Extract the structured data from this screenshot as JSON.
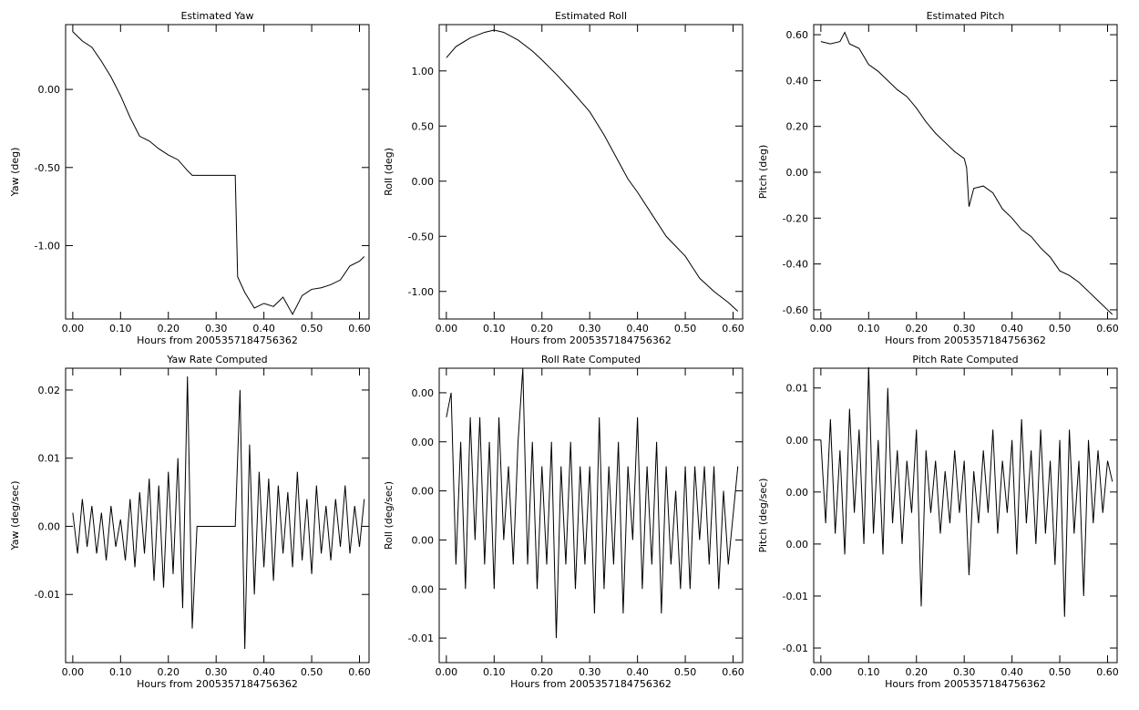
{
  "chart_data": [
    {
      "type": "line",
      "title": "Estimated Yaw",
      "xlabel": "Hours from 2005357184756362",
      "ylabel": "Yaw (deg)",
      "x": [
        0,
        0.02,
        0.04,
        0.06,
        0.08,
        0.1,
        0.12,
        0.14,
        0.16,
        0.18,
        0.2,
        0.22,
        0.24,
        0.25,
        0.34,
        0.345,
        0.36,
        0.38,
        0.4,
        0.42,
        0.44,
        0.46,
        0.48,
        0.5,
        0.52,
        0.54,
        0.56,
        0.58,
        0.6,
        0.61
      ],
      "values": [
        0.37,
        0.31,
        0.27,
        0.18,
        0.08,
        -0.04,
        -0.18,
        -0.3,
        -0.33,
        -0.38,
        -0.42,
        -0.45,
        -0.52,
        -0.55,
        -0.55,
        -1.2,
        -1.3,
        -1.4,
        -1.37,
        -1.39,
        -1.33,
        -1.44,
        -1.32,
        -1.28,
        -1.27,
        -1.25,
        -1.22,
        -1.13,
        -1.1,
        -1.07
      ],
      "color": "#000000",
      "xlim": [
        -0.015,
        0.62
      ],
      "ylim": [
        -1.47,
        0.415
      ],
      "xticks": [
        {
          "value": 0,
          "label": "0.00"
        },
        {
          "value": 0.1,
          "label": "0.10"
        },
        {
          "value": 0.2,
          "label": "0.20"
        },
        {
          "value": 0.3,
          "label": "0.30"
        },
        {
          "value": 0.4,
          "label": "0.40"
        },
        {
          "value": 0.5,
          "label": "0.50"
        },
        {
          "value": 0.6,
          "label": "0.60"
        }
      ],
      "yticks": [
        {
          "value": 0,
          "label": "0.00"
        },
        {
          "value": -0.5,
          "label": "-0.50"
        },
        {
          "value": -1,
          "label": "-1.00"
        }
      ]
    },
    {
      "type": "line",
      "title": "Estimated Roll",
      "xlabel": "Hours from 2005357184756362",
      "ylabel": "Roll (deg)",
      "x": [
        0,
        0.02,
        0.05,
        0.08,
        0.1,
        0.12,
        0.15,
        0.18,
        0.2,
        0.23,
        0.26,
        0.3,
        0.33,
        0.36,
        0.38,
        0.4,
        0.43,
        0.46,
        0.5,
        0.53,
        0.56,
        0.59,
        0.61
      ],
      "values": [
        1.12,
        1.22,
        1.3,
        1.35,
        1.37,
        1.35,
        1.28,
        1.18,
        1.1,
        0.97,
        0.83,
        0.63,
        0.42,
        0.18,
        0.02,
        -0.1,
        -0.3,
        -0.5,
        -0.68,
        -0.88,
        -1.0,
        -1.1,
        -1.18
      ],
      "color": "#000000",
      "xlim": [
        -0.015,
        0.62
      ],
      "ylim": [
        -1.25,
        1.42
      ],
      "xticks": [
        {
          "value": 0,
          "label": "0.00"
        },
        {
          "value": 0.1,
          "label": "0.10"
        },
        {
          "value": 0.2,
          "label": "0.20"
        },
        {
          "value": 0.3,
          "label": "0.30"
        },
        {
          "value": 0.4,
          "label": "0.40"
        },
        {
          "value": 0.5,
          "label": "0.50"
        },
        {
          "value": 0.6,
          "label": "0.60"
        }
      ],
      "yticks": [
        {
          "value": 1,
          "label": "1.00"
        },
        {
          "value": 0.5,
          "label": "0.50"
        },
        {
          "value": 0,
          "label": "0.00"
        },
        {
          "value": -0.5,
          "label": "-0.50"
        },
        {
          "value": -1,
          "label": "-1.00"
        }
      ]
    },
    {
      "type": "line",
      "title": "Estimated Pitch",
      "xlabel": "Hours from 2005357184756362",
      "ylabel": "Pitch (deg)",
      "x": [
        0,
        0.02,
        0.04,
        0.05,
        0.06,
        0.08,
        0.1,
        0.12,
        0.14,
        0.16,
        0.18,
        0.2,
        0.22,
        0.24,
        0.26,
        0.28,
        0.3,
        0.305,
        0.31,
        0.32,
        0.34,
        0.36,
        0.38,
        0.4,
        0.42,
        0.44,
        0.46,
        0.48,
        0.5,
        0.52,
        0.54,
        0.56,
        0.58,
        0.6,
        0.61
      ],
      "values": [
        0.57,
        0.56,
        0.57,
        0.61,
        0.56,
        0.54,
        0.47,
        0.44,
        0.4,
        0.36,
        0.33,
        0.28,
        0.22,
        0.17,
        0.13,
        0.09,
        0.06,
        0.02,
        -0.15,
        -0.07,
        -0.06,
        -0.09,
        -0.16,
        -0.2,
        -0.25,
        -0.28,
        -0.33,
        -0.37,
        -0.43,
        -0.45,
        -0.48,
        -0.52,
        -0.56,
        -0.6,
        -0.62
      ],
      "color": "#000000",
      "xlim": [
        -0.015,
        0.62
      ],
      "ylim": [
        -0.64,
        0.644
      ],
      "xticks": [
        {
          "value": 0,
          "label": "0.00"
        },
        {
          "value": 0.1,
          "label": "0.10"
        },
        {
          "value": 0.2,
          "label": "0.20"
        },
        {
          "value": 0.3,
          "label": "0.30"
        },
        {
          "value": 0.4,
          "label": "0.40"
        },
        {
          "value": 0.5,
          "label": "0.50"
        },
        {
          "value": 0.6,
          "label": "0.60"
        }
      ],
      "yticks": [
        {
          "value": 0.6,
          "label": "0.60"
        },
        {
          "value": 0.4,
          "label": "0.40"
        },
        {
          "value": 0.2,
          "label": "0.20"
        },
        {
          "value": 0,
          "label": "0.00"
        },
        {
          "value": -0.2,
          "label": "-0.20"
        },
        {
          "value": -0.4,
          "label": "-0.40"
        },
        {
          "value": -0.6,
          "label": "-0.60"
        }
      ]
    },
    {
      "type": "line",
      "title": "Yaw Rate Computed",
      "xlabel": "Hours from 2005357184756362",
      "ylabel": "Yaw (deg/sec)",
      "x": [
        0,
        0.01,
        0.02,
        0.03,
        0.04,
        0.05,
        0.06,
        0.07,
        0.08,
        0.09,
        0.1,
        0.11,
        0.12,
        0.13,
        0.14,
        0.15,
        0.16,
        0.17,
        0.18,
        0.19,
        0.2,
        0.21,
        0.22,
        0.23,
        0.24,
        0.25,
        0.26,
        0.27,
        0.28,
        0.29,
        0.3,
        0.31,
        0.32,
        0.33,
        0.34,
        0.35,
        0.36,
        0.37,
        0.38,
        0.39,
        0.4,
        0.41,
        0.42,
        0.43,
        0.44,
        0.45,
        0.46,
        0.47,
        0.48,
        0.49,
        0.5,
        0.51,
        0.52,
        0.53,
        0.54,
        0.55,
        0.56,
        0.57,
        0.58,
        0.59,
        0.6,
        0.61
      ],
      "values": [
        0.002,
        -0.004,
        0.004,
        -0.003,
        0.003,
        -0.004,
        0.002,
        -0.005,
        0.003,
        -0.003,
        0.001,
        -0.005,
        0.004,
        -0.006,
        0.005,
        -0.004,
        0.007,
        -0.008,
        0.006,
        -0.009,
        0.008,
        -0.007,
        0.01,
        -0.012,
        0.022,
        -0.015,
        0,
        0,
        0,
        0,
        0,
        0,
        0,
        0,
        0,
        0.02,
        -0.018,
        0.012,
        -0.01,
        0.008,
        -0.006,
        0.007,
        -0.008,
        0.006,
        -0.004,
        0.005,
        -0.006,
        0.008,
        -0.005,
        0.004,
        -0.007,
        0.006,
        -0.004,
        0.003,
        -0.005,
        0.004,
        -0.003,
        0.006,
        -0.004,
        0.003,
        -0.003,
        0.004
      ],
      "color": "#000000",
      "xlim": [
        -0.015,
        0.62
      ],
      "ylim": [
        -0.02,
        0.0232
      ],
      "xticks": [
        {
          "value": 0,
          "label": "0.00"
        },
        {
          "value": 0.1,
          "label": "0.10"
        },
        {
          "value": 0.2,
          "label": "0.20"
        },
        {
          "value": 0.3,
          "label": "0.30"
        },
        {
          "value": 0.4,
          "label": "0.40"
        },
        {
          "value": 0.5,
          "label": "0.50"
        },
        {
          "value": 0.6,
          "label": "0.60"
        }
      ],
      "yticks": [
        0.02,
        0.01,
        {
          "value": 0,
          "label": "0.00"
        },
        -0.01
      ]
    },
    {
      "type": "line",
      "title": "Roll Rate Computed",
      "xlabel": "Hours from 2005357184756362",
      "ylabel": "Roll (deg/sec)",
      "x": [
        0,
        0.01,
        0.02,
        0.03,
        0.04,
        0.05,
        0.06,
        0.07,
        0.08,
        0.09,
        0.1,
        0.11,
        0.12,
        0.13,
        0.14,
        0.15,
        0.16,
        0.17,
        0.18,
        0.19,
        0.2,
        0.21,
        0.22,
        0.23,
        0.24,
        0.25,
        0.26,
        0.27,
        0.28,
        0.29,
        0.3,
        0.31,
        0.32,
        0.33,
        0.34,
        0.35,
        0.36,
        0.37,
        0.38,
        0.39,
        0.4,
        0.41,
        0.42,
        0.43,
        0.44,
        0.45,
        0.46,
        0.47,
        0.48,
        0.49,
        0.5,
        0.51,
        0.52,
        0.53,
        0.54,
        0.55,
        0.56,
        0.57,
        0.58,
        0.59,
        0.6,
        0.61
      ],
      "values": [
        0.003,
        0.004,
        -0.003,
        0.002,
        -0.004,
        0.003,
        -0.002,
        0.003,
        -0.003,
        0.002,
        -0.004,
        0.003,
        -0.002,
        0.001,
        -0.003,
        0.002,
        0.005,
        -0.003,
        0.002,
        -0.004,
        0.001,
        -0.003,
        0.002,
        -0.006,
        0.001,
        -0.003,
        0.002,
        -0.004,
        0.001,
        -0.003,
        0.001,
        -0.005,
        0.003,
        -0.004,
        0.001,
        -0.003,
        0.002,
        -0.005,
        0.001,
        -0.002,
        0.003,
        -0.004,
        0.001,
        -0.003,
        0.002,
        -0.005,
        0.001,
        -0.003,
        0.0,
        -0.004,
        0.001,
        -0.004,
        0.001,
        -0.002,
        0.001,
        -0.003,
        0.001,
        -0.004,
        0.0,
        -0.003,
        -0.001,
        0.001
      ],
      "color": "#000000",
      "xlim": [
        -0.015,
        0.62
      ],
      "ylim": [
        -0.007,
        0.005
      ],
      "xticks": [
        {
          "value": 0,
          "label": "0.00"
        },
        {
          "value": 0.1,
          "label": "0.10"
        },
        {
          "value": 0.2,
          "label": "0.20"
        },
        {
          "value": 0.3,
          "label": "0.30"
        },
        {
          "value": 0.4,
          "label": "0.40"
        },
        {
          "value": 0.5,
          "label": "0.50"
        },
        {
          "value": 0.6,
          "label": "0.60"
        }
      ],
      "yticks": [
        {
          "value": 0.004,
          "label": "0.00"
        },
        {
          "value": 0.002,
          "label": "0.00"
        },
        {
          "value": 0,
          "label": "0.00"
        },
        {
          "value": -0.002,
          "label": "0.00"
        },
        {
          "value": -0.004,
          "label": "0.00"
        },
        {
          "value": -0.006,
          "label": "-0.01"
        }
      ]
    },
    {
      "type": "line",
      "title": "Pitch Rate Computed",
      "xlabel": "Hours from 2005357184756362",
      "ylabel": "Pitch (deg/sec)",
      "x": [
        0,
        0.01,
        0.02,
        0.03,
        0.04,
        0.05,
        0.06,
        0.07,
        0.08,
        0.09,
        0.1,
        0.11,
        0.12,
        0.13,
        0.14,
        0.15,
        0.16,
        0.17,
        0.18,
        0.19,
        0.2,
        0.21,
        0.22,
        0.23,
        0.24,
        0.25,
        0.26,
        0.27,
        0.28,
        0.29,
        0.3,
        0.31,
        0.32,
        0.33,
        0.34,
        0.35,
        0.36,
        0.37,
        0.38,
        0.39,
        0.4,
        0.41,
        0.42,
        0.43,
        0.44,
        0.45,
        0.46,
        0.47,
        0.48,
        0.49,
        0.5,
        0.51,
        0.52,
        0.53,
        0.54,
        0.55,
        0.56,
        0.57,
        0.58,
        0.59,
        0.6,
        0.61
      ],
      "values": [
        0.005,
        -0.003,
        0.007,
        -0.004,
        0.004,
        -0.006,
        0.008,
        -0.002,
        0.006,
        -0.005,
        0.012,
        -0.004,
        0.005,
        -0.006,
        0.01,
        -0.003,
        0.004,
        -0.005,
        0.003,
        -0.002,
        0.006,
        -0.011,
        0.004,
        -0.002,
        0.003,
        -0.004,
        0.002,
        -0.003,
        0.004,
        -0.002,
        0.003,
        -0.008,
        0.002,
        -0.003,
        0.004,
        -0.002,
        0.006,
        -0.004,
        0.003,
        -0.002,
        0.005,
        -0.006,
        0.007,
        -0.003,
        0.004,
        -0.005,
        0.006,
        -0.004,
        0.003,
        -0.007,
        0.005,
        -0.012,
        0.006,
        -0.004,
        0.003,
        -0.01,
        0.005,
        -0.003,
        0.004,
        -0.002,
        0.003,
        0.001
      ],
      "color": "#000000",
      "xlim": [
        -0.015,
        0.62
      ],
      "ylim": [
        -0.0164,
        0.0119
      ],
      "xticks": [
        {
          "value": 0,
          "label": "0.00"
        },
        {
          "value": 0.1,
          "label": "0.10"
        },
        {
          "value": 0.2,
          "label": "0.20"
        },
        {
          "value": 0.3,
          "label": "0.30"
        },
        {
          "value": 0.4,
          "label": "0.40"
        },
        {
          "value": 0.5,
          "label": "0.50"
        },
        {
          "value": 0.6,
          "label": "0.60"
        }
      ],
      "yticks": [
        0.01,
        {
          "value": 0.005,
          "label": "0.00"
        },
        {
          "value": 0,
          "label": "0.00"
        },
        {
          "value": -0.005,
          "label": "0.00"
        },
        -0.01,
        {
          "value": -0.015,
          "label": "-0.01"
        }
      ]
    }
  ]
}
